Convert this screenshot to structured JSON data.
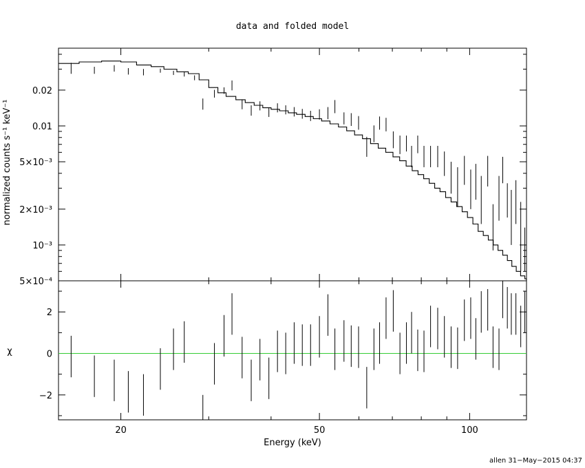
{
  "chart_data": [
    {
      "type": "line",
      "title": "data and folded model",
      "xlabel": "",
      "ylabel": "normalized counts s⁻¹ keV⁻¹",
      "xscale": "log",
      "yscale": "log",
      "xlim": [
        15,
        130
      ],
      "ylim": [
        0.0005,
        0.045
      ],
      "ytick_labels": [
        {
          "value": 0.02,
          "label": "0.02"
        },
        {
          "value": 0.01,
          "label": "0.01"
        },
        {
          "value": 0.005,
          "label": "5×10⁻³"
        },
        {
          "value": 0.002,
          "label": "2×10⁻³"
        },
        {
          "value": 0.001,
          "label": "10⁻³"
        },
        {
          "value": 0.0005,
          "label": "5×10⁻⁴"
        }
      ],
      "grid": false,
      "series": [
        {
          "kind": "data_with_errors",
          "points": [
            [
              15.9,
              0.0302,
              0.0028,
              0.0037,
              0.008
            ],
            [
              17.7,
              0.0292,
              0.0018,
              0.0022,
              0.006
            ],
            [
              19.4,
              0.0302,
              0.0016,
              0.0022,
              0.005
            ],
            [
              20.7,
              0.0285,
              0.0015,
              0.0021,
              0.005
            ],
            [
              22.2,
              0.028,
              0.0014,
              0.0021,
              0.005
            ],
            [
              24.0,
              0.029,
              0.001,
              0.0013,
              0.005
            ],
            [
              25.5,
              0.0278,
              0.001,
              0.0013,
              0.004
            ],
            [
              26.8,
              0.027,
              0.001,
              0.0014,
              0.004
            ],
            [
              28.1,
              0.0252,
              0.001,
              0.0014,
              0.004
            ],
            [
              29.2,
              0.015,
              0.0013,
              0.002,
              0.004
            ],
            [
              30.8,
              0.0185,
              0.0012,
              0.0016,
              0.005
            ],
            [
              32.2,
              0.0196,
              0.001,
              0.0015,
              0.005
            ],
            [
              33.4,
              0.0217,
              0.0018,
              0.0024,
              0.005
            ],
            [
              35.0,
              0.015,
              0.0012,
              0.0017,
              0.005
            ],
            [
              36.5,
              0.0133,
              0.0011,
              0.0016,
              0.005
            ],
            [
              38.0,
              0.0145,
              0.001,
              0.0016,
              0.005
            ],
            [
              39.6,
              0.0128,
              0.0009,
              0.0015,
              0.005
            ],
            [
              41.2,
              0.014,
              0.001,
              0.0015,
              0.006
            ],
            [
              42.8,
              0.0135,
              0.001,
              0.0014,
              0.006
            ],
            [
              44.5,
              0.013,
              0.001,
              0.0014,
              0.006
            ],
            [
              46.2,
              0.0125,
              0.001,
              0.0014,
              0.007
            ],
            [
              48.0,
              0.012,
              0.001,
              0.0014,
              0.007
            ],
            [
              50.0,
              0.0124,
              0.0011,
              0.0014,
              0.007
            ],
            [
              52.0,
              0.0128,
              0.0014,
              0.0016,
              0.008
            ],
            [
              53.7,
              0.0145,
              0.0017,
              0.002,
              0.008
            ],
            [
              56.0,
              0.0115,
              0.0012,
              0.0015,
              0.008
            ],
            [
              57.9,
              0.0112,
              0.0012,
              0.0016,
              0.008
            ],
            [
              59.9,
              0.0105,
              0.0012,
              0.0016,
              0.009
            ],
            [
              62.2,
              0.0067,
              0.0012,
              0.0014,
              0.009
            ],
            [
              64.3,
              0.0085,
              0.0012,
              0.0016,
              0.009
            ],
            [
              66.0,
              0.0105,
              0.0012,
              0.0015,
              0.009
            ],
            [
              68.0,
              0.0102,
              0.0012,
              0.0015,
              0.01
            ],
            [
              70.3,
              0.0075,
              0.001,
              0.0015,
              0.01
            ],
            [
              72.5,
              0.0068,
              0.001,
              0.0015,
              0.01
            ],
            [
              74.7,
              0.007,
              0.0009,
              0.0013,
              0.011
            ],
            [
              76.5,
              0.0055,
              0.001,
              0.0013,
              0.011
            ],
            [
              78.7,
              0.007,
              0.0011,
              0.0013,
              0.011
            ],
            [
              81.0,
              0.0055,
              0.001,
              0.0013,
              0.012
            ],
            [
              83.5,
              0.0055,
              0.001,
              0.0013,
              0.012
            ],
            [
              86.3,
              0.0055,
              0.001,
              0.0013,
              0.012
            ],
            [
              89.0,
              0.0048,
              0.001,
              0.0013,
              0.013
            ],
            [
              91.8,
              0.0038,
              0.0011,
              0.0012,
              0.013
            ],
            [
              94.6,
              0.0032,
              0.0011,
              0.0013,
              0.014
            ],
            [
              97.6,
              0.0043,
              0.0011,
              0.0013,
              0.014
            ],
            [
              100.5,
              0.003,
              0.001,
              0.0013,
              0.015
            ],
            [
              102.9,
              0.0035,
              0.0011,
              0.0013,
              0.015
            ],
            [
              105.5,
              0.0025,
              0.001,
              0.0013,
              0.016
            ],
            [
              108.7,
              0.0043,
              0.0012,
              0.0013,
              0.016
            ],
            [
              111.4,
              0.0014,
              0.0005,
              0.0008,
              0.017
            ],
            [
              114.5,
              0.0025,
              0.0009,
              0.0013,
              0.017
            ],
            [
              116.5,
              0.0045,
              0.0012,
              0.001,
              0.018
            ],
            [
              119.0,
              0.0025,
              0.0008,
              0.0008,
              0.018
            ],
            [
              121.2,
              0.0021,
              0.0011,
              0.0008,
              0.018
            ],
            [
              123.8,
              0.0025,
              0.001,
              0.001,
              0.019
            ],
            [
              126.6,
              0.0015,
              0.0009,
              0.0008,
              0.019
            ],
            [
              129.0,
              0.001,
              0.0004,
              0.0004,
              0.019
            ]
          ]
        },
        {
          "kind": "folded_model",
          "step_points": [
            [
              15,
              0.0335
            ],
            [
              16.5,
              0.0345
            ],
            [
              18.3,
              0.0351
            ],
            [
              20.0,
              0.0345
            ],
            [
              21.5,
              0.0325
            ],
            [
              23.0,
              0.0315
            ],
            [
              24.4,
              0.03
            ],
            [
              25.9,
              0.0285
            ],
            [
              27.3,
              0.0275
            ],
            [
              28.7,
              0.0244
            ],
            [
              30.0,
              0.021
            ],
            [
              31.3,
              0.019
            ],
            [
              32.5,
              0.0177
            ],
            [
              34.0,
              0.0166
            ],
            [
              35.5,
              0.0157
            ],
            [
              37.0,
              0.0149
            ],
            [
              38.5,
              0.0142
            ],
            [
              40.0,
              0.0138
            ],
            [
              41.6,
              0.0134
            ],
            [
              43.3,
              0.0129
            ],
            [
              45.0,
              0.0125
            ],
            [
              46.8,
              0.012
            ],
            [
              48.6,
              0.0115
            ],
            [
              50.5,
              0.011
            ],
            [
              52.5,
              0.0104
            ],
            [
              54.6,
              0.0098
            ],
            [
              56.7,
              0.0091
            ],
            [
              58.8,
              0.0084
            ],
            [
              61.0,
              0.0078
            ],
            [
              63.3,
              0.0071
            ],
            [
              65.6,
              0.0065
            ],
            [
              67.9,
              0.006
            ],
            [
              70.2,
              0.0055
            ],
            [
              72.4,
              0.0051
            ],
            [
              74.6,
              0.0046
            ],
            [
              76.7,
              0.0042
            ],
            [
              78.8,
              0.0039
            ],
            [
              80.9,
              0.0036
            ],
            [
              83.0,
              0.0033
            ],
            [
              85.1,
              0.003
            ],
            [
              87.2,
              0.0028
            ],
            [
              89.5,
              0.0025
            ],
            [
              91.8,
              0.0023
            ],
            [
              94.2,
              0.0021
            ],
            [
              96.6,
              0.0019
            ],
            [
              99.0,
              0.0017
            ],
            [
              101.5,
              0.0015
            ],
            [
              104.0,
              0.0013
            ],
            [
              106.5,
              0.0012
            ],
            [
              109.0,
              0.0011
            ],
            [
              111.5,
              0.001
            ],
            [
              114.0,
              0.0009
            ],
            [
              116.5,
              0.00082
            ],
            [
              119.0,
              0.00074
            ],
            [
              121.5,
              0.00066
            ],
            [
              124.0,
              0.0006
            ],
            [
              126.5,
              0.00055
            ],
            [
              129.0,
              0.00052
            ],
            [
              130,
              0.0005
            ]
          ]
        }
      ]
    },
    {
      "type": "scatter",
      "title": "",
      "xlabel": "Energy (keV)",
      "ylabel": "χ",
      "xscale": "log",
      "xlim": [
        15,
        130
      ],
      "ylim": [
        -3.2,
        3.5
      ],
      "xtick_labels": [
        {
          "value": 20,
          "label": "20"
        },
        {
          "value": 50,
          "label": "50"
        },
        {
          "value": 100,
          "label": "100"
        }
      ],
      "ytick_labels": [
        {
          "value": 2,
          "label": "2"
        },
        {
          "value": 0,
          "label": "0"
        },
        {
          "value": -2,
          "label": "−2"
        }
      ],
      "zero_line_color": "#33cc33",
      "points": [
        [
          15.9,
          -0.15,
          0.008
        ],
        [
          17.7,
          -1.1,
          0.006
        ],
        [
          19.4,
          -1.3,
          0.005
        ],
        [
          20.7,
          -1.85,
          0.005
        ],
        [
          22.2,
          -2.0,
          0.005
        ],
        [
          24.0,
          -0.75,
          0.005
        ],
        [
          25.5,
          0.2,
          0.004
        ],
        [
          26.8,
          0.55,
          0.004
        ],
        [
          29.2,
          -3.0,
          0.004
        ],
        [
          30.8,
          -0.5,
          0.005
        ],
        [
          32.2,
          0.85,
          0.005
        ],
        [
          33.4,
          1.9,
          0.005
        ],
        [
          35.0,
          -0.2,
          0.005
        ],
        [
          36.5,
          -1.3,
          0.005
        ],
        [
          38.0,
          -0.3,
          0.005
        ],
        [
          39.6,
          -1.2,
          0.005
        ],
        [
          41.2,
          0.1,
          0.006
        ],
        [
          42.8,
          0.0,
          0.006
        ],
        [
          44.5,
          0.5,
          0.006
        ],
        [
          46.2,
          0.4,
          0.007
        ],
        [
          48.0,
          0.4,
          0.007
        ],
        [
          50.0,
          0.8,
          0.007
        ],
        [
          52.0,
          1.85,
          0.008
        ],
        [
          53.7,
          0.2,
          0.008
        ],
        [
          56.0,
          0.6,
          0.008
        ],
        [
          57.9,
          0.35,
          0.008
        ],
        [
          59.9,
          0.3,
          0.009
        ],
        [
          62.2,
          -1.65,
          0.009
        ],
        [
          64.3,
          0.2,
          0.009
        ],
        [
          66.0,
          0.5,
          0.009
        ],
        [
          68.0,
          1.7,
          0.01
        ],
        [
          70.3,
          2.05,
          0.01
        ],
        [
          72.5,
          0.0,
          0.01
        ],
        [
          74.7,
          0.5,
          0.011
        ],
        [
          76.5,
          1.0,
          0.011
        ],
        [
          78.7,
          0.15,
          0.011
        ],
        [
          81.0,
          0.1,
          0.012
        ],
        [
          83.5,
          1.3,
          0.012
        ],
        [
          86.3,
          1.2,
          0.012
        ],
        [
          89.0,
          0.8,
          0.013
        ],
        [
          91.8,
          0.3,
          0.013
        ],
        [
          94.6,
          0.25,
          0.014
        ],
        [
          97.6,
          1.6,
          0.014
        ],
        [
          100.5,
          1.7,
          0.015
        ],
        [
          102.9,
          0.7,
          0.015
        ],
        [
          105.5,
          2.0,
          0.016
        ],
        [
          108.7,
          2.1,
          0.016
        ],
        [
          111.4,
          0.3,
          0.017
        ],
        [
          114.5,
          0.2,
          0.017
        ],
        [
          116.5,
          2.7,
          0.018
        ],
        [
          119.0,
          2.2,
          0.018
        ],
        [
          121.2,
          1.9,
          0.018
        ],
        [
          123.8,
          1.9,
          0.019
        ],
        [
          126.6,
          1.3,
          0.019
        ],
        [
          129.0,
          2.0,
          0.019
        ]
      ]
    }
  ],
  "footer": {
    "stamp": "allen 31−May−2015 04:37"
  }
}
